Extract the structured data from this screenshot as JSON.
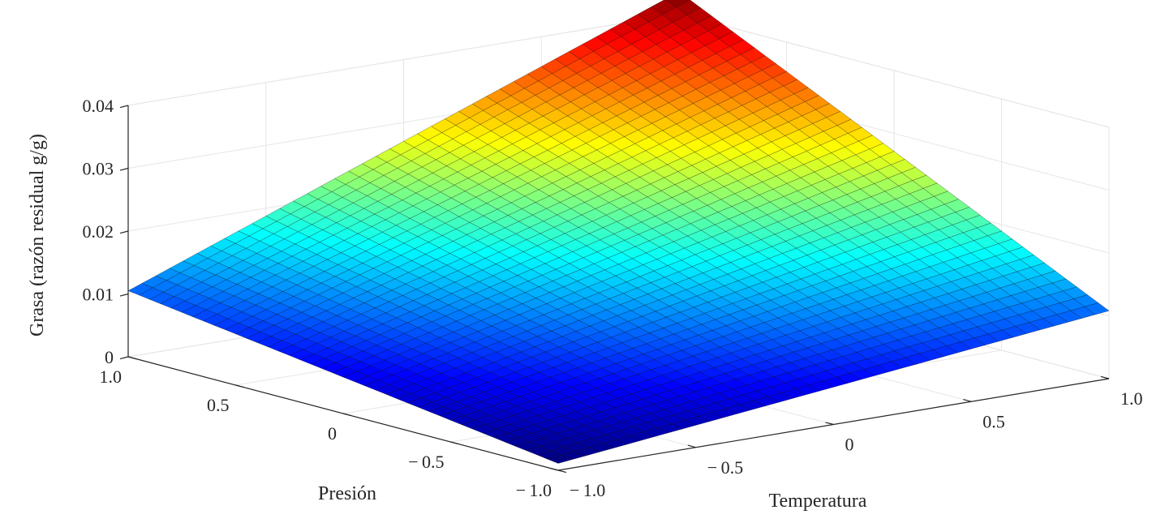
{
  "chart_data": {
    "type": "surface",
    "xlabel": "Temperatura",
    "ylabel": "Presión",
    "zlabel": "Grasa (razón residual g/g)",
    "xlim": [
      -1,
      1
    ],
    "ylim": [
      -1,
      1
    ],
    "zlim": [
      0,
      0.04
    ],
    "x_ticks": [
      {
        "value": -1,
        "label": "− 1.0"
      },
      {
        "value": -0.5,
        "label": "− 0.5"
      },
      {
        "value": 0,
        "label": "0"
      },
      {
        "value": 0.5,
        "label": "0.5"
      },
      {
        "value": 1,
        "label": "1.0"
      }
    ],
    "y_ticks": [
      {
        "value": -1,
        "label": "− 1.0"
      },
      {
        "value": -0.5,
        "label": "− 0.5"
      },
      {
        "value": 0,
        "label": "0"
      },
      {
        "value": 0.5,
        "label": "0.5"
      },
      {
        "value": 1,
        "label": "1.0"
      }
    ],
    "z_ticks": [
      {
        "value": 0,
        "label": "0"
      },
      {
        "value": 0.01,
        "label": "0.01"
      },
      {
        "value": 0.02,
        "label": "0.02"
      },
      {
        "value": 0.03,
        "label": "0.03"
      },
      {
        "value": 0.04,
        "label": "0.04"
      }
    ],
    "corner_values": [
      {
        "x": -1,
        "y": -1,
        "z": 0.0011
      },
      {
        "x": 1,
        "y": -1,
        "z": 0.0108
      },
      {
        "x": -1,
        "y": 1,
        "z": 0.0105
      },
      {
        "x": 1,
        "y": 1,
        "z": 0.0435
      }
    ],
    "grid_size": 41,
    "colormap": "jet",
    "grid": true,
    "colors": {
      "axis": "#262626",
      "grid": "#e6e6e6",
      "edge": "#000000"
    }
  }
}
